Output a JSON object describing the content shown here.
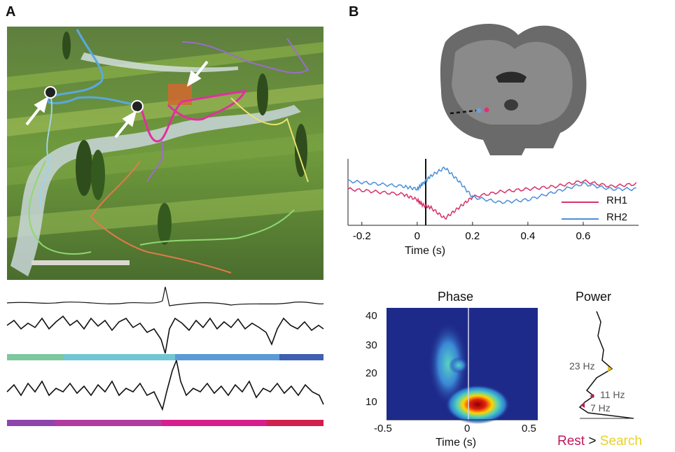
{
  "panels": {
    "a": {
      "letter": "A"
    },
    "b": {
      "letter": "B"
    }
  },
  "erp": {
    "xlabel": "Time (s)",
    "xticks": [
      "-0.2",
      "0",
      "0.2",
      "0.4",
      "0.6"
    ],
    "legend": [
      {
        "name": "RH1",
        "color": "#d6336c"
      },
      {
        "name": "RH2",
        "color": "#4a90d9"
      }
    ]
  },
  "phase": {
    "title": "Phase",
    "xlabel": "Time (s)",
    "xticks": [
      "-0.5",
      "0",
      "0.5"
    ],
    "yticks": [
      "40",
      "30",
      "20",
      "10"
    ]
  },
  "power": {
    "title": "Power",
    "markers": [
      {
        "label": "23 Hz",
        "color": "#e6c229"
      },
      {
        "label": "11 Hz",
        "color": "#c2185b"
      },
      {
        "label": "7 Hz",
        "color": "#c2185b"
      }
    ]
  },
  "contrast": {
    "rest": "Rest",
    "op": ">",
    "search": "Search",
    "rest_color": "#c2185b",
    "search_color": "#e6d229"
  },
  "state_bars": {
    "top": [
      "#7ec8a0",
      "#72c6d4",
      "#5b9bd5",
      "#3f5fb0"
    ],
    "bottom": [
      "#8e44ad",
      "#b03a9e",
      "#d61f8c",
      "#d0204e"
    ]
  },
  "chart_data": [
    {
      "type": "line",
      "title": "",
      "xlabel": "Time (s)",
      "ylabel": "",
      "xlim": [
        -0.25,
        0.8
      ],
      "series": [
        {
          "name": "RH1",
          "x": [
            -0.25,
            -0.15,
            -0.05,
            0.0,
            0.02,
            0.05,
            0.1,
            0.15,
            0.2,
            0.3,
            0.4,
            0.5,
            0.6,
            0.7,
            0.8
          ],
          "values": [
            0.1,
            0.0,
            -0.1,
            -0.3,
            -0.5,
            -0.6,
            -1.0,
            -0.6,
            -0.2,
            0.0,
            0.1,
            0.2,
            0.4,
            0.2,
            0.3
          ]
        },
        {
          "name": "RH2",
          "x": [
            -0.25,
            -0.15,
            -0.05,
            0.0,
            0.02,
            0.05,
            0.1,
            0.15,
            0.2,
            0.3,
            0.4,
            0.5,
            0.6,
            0.7,
            0.8
          ],
          "values": [
            0.4,
            0.3,
            0.2,
            0.1,
            0.3,
            0.6,
            0.9,
            0.4,
            -0.2,
            -0.4,
            -0.3,
            0.0,
            0.3,
            0.1,
            0.1
          ]
        }
      ]
    },
    {
      "type": "heatmap",
      "title": "Phase",
      "xlabel": "Time (s)",
      "ylabel": "",
      "xlim": [
        -0.5,
        0.5
      ],
      "ylim": [
        4,
        44
      ]
    },
    {
      "type": "line",
      "title": "Power",
      "series": [
        {
          "name": "",
          "values": []
        }
      ]
    }
  ]
}
